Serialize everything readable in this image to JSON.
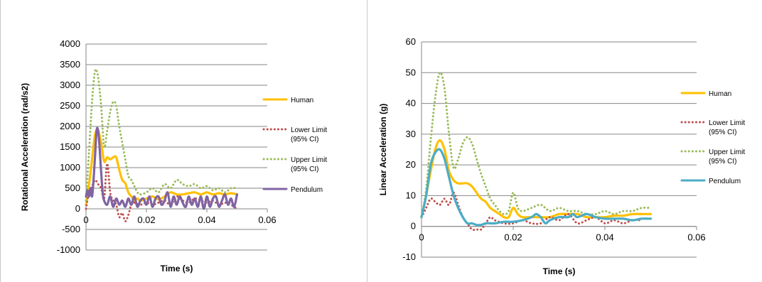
{
  "chart_data": [
    {
      "type": "line",
      "xlabel": "Time (s)",
      "ylabel": "Rotational Acceleration (rad/s2)",
      "xlim": [
        0,
        0.06
      ],
      "ylim": [
        -1000,
        4000
      ],
      "xticks": [
        0,
        0.02,
        0.04,
        0.06
      ],
      "xtick_labels": [
        "0",
        "0.02",
        "0.04",
        "0.06"
      ],
      "yticks": [
        -1000,
        -500,
        0,
        500,
        1000,
        1500,
        2000,
        2500,
        3000,
        3500,
        4000
      ],
      "ytick_labels": [
        "-1000",
        "-500",
        "0",
        "500",
        "1000",
        "1500",
        "2000",
        "2500",
        "3000",
        "3500",
        "4000"
      ],
      "grid": "horizontal",
      "legend": "right",
      "series": [
        {
          "name": "Human",
          "color": "#FFC000",
          "style": "solid",
          "x": [
            0,
            0.001,
            0.002,
            0.003,
            0.004,
            0.005,
            0.006,
            0.007,
            0.008,
            0.009,
            0.01,
            0.011,
            0.012,
            0.013,
            0.014,
            0.015,
            0.016,
            0.017,
            0.018,
            0.02,
            0.022,
            0.024,
            0.026,
            0.028,
            0.03,
            0.032,
            0.034,
            0.036,
            0.038,
            0.04,
            0.042,
            0.044,
            0.046,
            0.048,
            0.05
          ],
          "y": [
            100,
            600,
            1200,
            1800,
            1900,
            1600,
            1150,
            1250,
            1200,
            1250,
            1250,
            950,
            700,
            620,
            400,
            300,
            200,
            250,
            200,
            250,
            300,
            230,
            300,
            400,
            350,
            350,
            380,
            400,
            350,
            400,
            350,
            380,
            350,
            380,
            350
          ]
        },
        {
          "name": "Lower Limit (95% CI)",
          "color": "#C0504D",
          "style": "dotted",
          "x": [
            0,
            0.001,
            0.002,
            0.003,
            0.004,
            0.005,
            0.006,
            0.007,
            0.008,
            0.009,
            0.01,
            0.011,
            0.012,
            0.013,
            0.014,
            0.015,
            0.016,
            0.018,
            0.02,
            0.022,
            0.024,
            0.026,
            0.028,
            0.03,
            0.032,
            0.034,
            0.036,
            0.038,
            0.04,
            0.042,
            0.044,
            0.046,
            0.048,
            0.05
          ],
          "y": [
            0,
            400,
            550,
            700,
            600,
            500,
            250,
            1100,
            400,
            200,
            100,
            -200,
            -100,
            -300,
            -150,
            100,
            150,
            100,
            150,
            100,
            150,
            200,
            100,
            300,
            200,
            150,
            250,
            200,
            150,
            200,
            100,
            150,
            100,
            0
          ]
        },
        {
          "name": "Upper Limit (95% CI)",
          "color": "#9BBB59",
          "style": "dotted",
          "x": [
            0,
            0.001,
            0.002,
            0.003,
            0.004,
            0.005,
            0.006,
            0.007,
            0.008,
            0.009,
            0.01,
            0.011,
            0.012,
            0.013,
            0.014,
            0.015,
            0.016,
            0.017,
            0.018,
            0.02,
            0.022,
            0.024,
            0.026,
            0.028,
            0.03,
            0.032,
            0.034,
            0.036,
            0.038,
            0.04,
            0.042,
            0.044,
            0.046,
            0.048,
            0.05
          ],
          "y": [
            200,
            1400,
            2600,
            3350,
            3200,
            2500,
            1500,
            1900,
            2350,
            2600,
            2500,
            2000,
            1600,
            1200,
            800,
            700,
            550,
            400,
            350,
            400,
            500,
            400,
            600,
            500,
            700,
            600,
            550,
            600,
            500,
            550,
            450,
            500,
            400,
            500,
            500
          ]
        },
        {
          "name": "Pendulum",
          "color": "#8064A2",
          "style": "solid",
          "x": [
            0,
            0.0005,
            0.001,
            0.0015,
            0.002,
            0.0025,
            0.003,
            0.0035,
            0.004,
            0.0045,
            0.005,
            0.0055,
            0.006,
            0.007,
            0.008,
            0.009,
            0.01,
            0.011,
            0.012,
            0.013,
            0.014,
            0.015,
            0.016,
            0.017,
            0.018,
            0.019,
            0.02,
            0.021,
            0.022,
            0.023,
            0.024,
            0.025,
            0.026,
            0.027,
            0.028,
            0.029,
            0.03,
            0.031,
            0.032,
            0.033,
            0.034,
            0.035,
            0.036,
            0.037,
            0.038,
            0.039,
            0.04,
            0.041,
            0.042,
            0.043,
            0.044,
            0.045,
            0.046,
            0.047,
            0.048,
            0.049,
            0.05
          ],
          "y": [
            300,
            450,
            300,
            500,
            300,
            700,
            1300,
            1900,
            1900,
            1500,
            900,
            400,
            200,
            100,
            300,
            50,
            250,
            100,
            200,
            50,
            250,
            100,
            300,
            50,
            200,
            250,
            100,
            300,
            50,
            250,
            300,
            100,
            200,
            400,
            50,
            300,
            100,
            300,
            150,
            50,
            300,
            100,
            250,
            50,
            300,
            0,
            300,
            50,
            250,
            300,
            50,
            200,
            350,
            100,
            250,
            50,
            350
          ]
        }
      ]
    },
    {
      "type": "line",
      "xlabel": "Time (s)",
      "ylabel": "Linear Acceleration  (g)",
      "xlim": [
        0,
        0.06
      ],
      "ylim": [
        -10,
        60
      ],
      "xticks": [
        0,
        0.02,
        0.04,
        0.06
      ],
      "xtick_labels": [
        "0",
        "0.02",
        "0.04",
        "0.06"
      ],
      "yticks": [
        -10,
        0,
        10,
        20,
        30,
        40,
        50,
        60
      ],
      "ytick_labels": [
        "-10",
        "0",
        "10",
        "20",
        "30",
        "40",
        "50",
        "60"
      ],
      "grid": "horizontal",
      "legend": "right",
      "series": [
        {
          "name": "Human",
          "color": "#FFC000",
          "style": "solid",
          "x": [
            0,
            0.001,
            0.002,
            0.003,
            0.004,
            0.005,
            0.006,
            0.007,
            0.008,
            0.009,
            0.01,
            0.011,
            0.012,
            0.013,
            0.014,
            0.015,
            0.016,
            0.017,
            0.018,
            0.019,
            0.02,
            0.021,
            0.022,
            0.024,
            0.026,
            0.028,
            0.03,
            0.032,
            0.034,
            0.036,
            0.038,
            0.04,
            0.042,
            0.044,
            0.046,
            0.048,
            0.05
          ],
          "y": [
            3,
            10,
            18,
            25,
            28,
            25,
            18,
            15,
            14,
            14,
            14,
            13,
            11,
            9,
            8,
            6,
            5,
            4,
            3,
            3,
            6,
            4,
            3,
            3,
            3,
            3,
            4,
            4,
            4,
            3,
            3,
            3,
            3.5,
            3.5,
            4,
            4,
            4
          ]
        },
        {
          "name": "Lower Limit (95% CI)",
          "color": "#C0504D",
          "style": "dotted",
          "x": [
            0,
            0.001,
            0.002,
            0.003,
            0.004,
            0.005,
            0.006,
            0.007,
            0.008,
            0.009,
            0.01,
            0.011,
            0.012,
            0.013,
            0.014,
            0.015,
            0.016,
            0.018,
            0.02,
            0.022,
            0.024,
            0.026,
            0.028,
            0.03,
            0.032,
            0.034,
            0.036,
            0.038,
            0.04,
            0.042,
            0.044,
            0.046,
            0.048
          ],
          "y": [
            3,
            6,
            9,
            8,
            7,
            9,
            7,
            11,
            7,
            3,
            1,
            -1,
            -1,
            -1,
            1,
            3,
            2,
            1,
            1,
            2,
            1,
            1,
            3,
            2,
            4,
            1,
            2,
            3,
            1,
            2,
            1,
            2,
            2
          ]
        },
        {
          "name": "Upper Limit (95% CI)",
          "color": "#9BBB59",
          "style": "dotted",
          "x": [
            0,
            0.001,
            0.002,
            0.003,
            0.004,
            0.005,
            0.006,
            0.007,
            0.008,
            0.009,
            0.01,
            0.011,
            0.012,
            0.013,
            0.014,
            0.015,
            0.016,
            0.017,
            0.018,
            0.019,
            0.02,
            0.021,
            0.022,
            0.024,
            0.026,
            0.028,
            0.03,
            0.032,
            0.034,
            0.036,
            0.038,
            0.04,
            0.042,
            0.044,
            0.046,
            0.048,
            0.05
          ],
          "y": [
            3,
            12,
            28,
            42,
            50,
            45,
            30,
            19,
            22,
            27,
            29,
            27,
            22,
            17,
            13,
            9,
            7,
            5,
            4,
            5,
            11,
            6,
            5,
            6,
            7,
            5,
            6,
            5,
            5,
            4,
            4,
            5,
            4,
            5,
            5,
            6,
            6
          ]
        },
        {
          "name": "Pendulum",
          "color": "#4BACC6",
          "style": "solid",
          "x": [
            0,
            0.001,
            0.002,
            0.003,
            0.004,
            0.005,
            0.006,
            0.007,
            0.008,
            0.009,
            0.01,
            0.011,
            0.012,
            0.013,
            0.014,
            0.015,
            0.016,
            0.018,
            0.02,
            0.022,
            0.024,
            0.025,
            0.026,
            0.027,
            0.028,
            0.03,
            0.032,
            0.033,
            0.034,
            0.036,
            0.038,
            0.04,
            0.042,
            0.044,
            0.046,
            0.048,
            0.05
          ],
          "y": [
            3,
            10,
            20,
            24,
            25,
            22,
            16,
            10,
            6,
            3,
            1,
            1,
            0.5,
            0.5,
            1,
            1,
            1,
            1.5,
            1.5,
            2,
            3,
            4,
            3,
            1,
            2,
            3,
            3,
            4,
            3,
            4,
            3,
            2.5,
            2.5,
            2.5,
            2,
            2.5,
            2.5
          ]
        }
      ]
    }
  ]
}
